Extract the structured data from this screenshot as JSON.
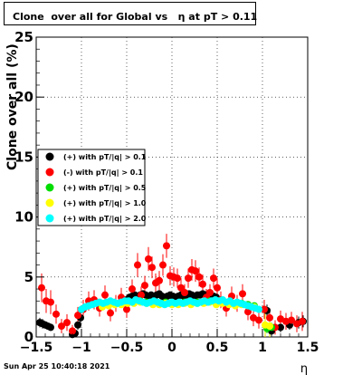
{
  "title": "Clone  over all for Global vs   η at pT > 0.11",
  "footer": "Sun Apr 25 10:40:18 2021",
  "chart_data": {
    "type": "scatter",
    "title": "Clone  over all for Global vs   η at pT > 0.11",
    "xlabel": "η",
    "ylabel": "Clone  over all (%)",
    "xlim": [
      -1.5,
      1.5
    ],
    "ylim": [
      0,
      25
    ],
    "xticks": [
      -1.5,
      -1,
      -0.5,
      0,
      0.5,
      1,
      1.5
    ],
    "xtick_labels": [
      "−1.5",
      "−1",
      "−0.5",
      "0",
      "0.5",
      "1",
      "1.5"
    ],
    "yticks": [
      0,
      5,
      10,
      15,
      20,
      25
    ],
    "ytick_labels": [
      "0",
      "5",
      "10",
      "15",
      "20",
      "25"
    ],
    "grid": true,
    "legend_position": "left-middle",
    "series": [
      {
        "name": "(+) with pT/|q| > 0.1",
        "color": "#000000",
        "x": [
          -1.46,
          -1.43,
          -1.4,
          -1.37,
          -1.34,
          -1.1,
          -1.07,
          -1.04,
          -1.01,
          -0.5,
          -0.47,
          -0.44,
          -0.41,
          -0.38,
          -0.35,
          -0.32,
          -0.29,
          -0.26,
          -0.23,
          -0.2,
          -0.17,
          -0.14,
          -0.11,
          -0.08,
          -0.05,
          -0.02,
          0.01,
          0.04,
          0.07,
          0.1,
          0.13,
          0.16,
          0.19,
          0.22,
          0.25,
          0.28,
          0.31,
          0.34,
          0.37,
          0.4,
          0.43,
          0.46,
          0.49,
          1.05,
          1.1,
          1.2,
          1.3,
          1.4,
          1.45
        ],
        "y": [
          1.2,
          1.1,
          1.0,
          0.9,
          0.8,
          0.2,
          0.3,
          1.0,
          1.6,
          3.1,
          3.3,
          3.4,
          3.5,
          3.4,
          3.5,
          3.6,
          3.5,
          3.4,
          3.5,
          3.4,
          3.5,
          3.6,
          3.4,
          3.3,
          3.4,
          3.5,
          3.4,
          3.3,
          3.4,
          3.5,
          3.4,
          3.5,
          3.6,
          3.5,
          3.4,
          3.5,
          3.5,
          3.6,
          3.5,
          3.4,
          3.5,
          3.4,
          3.3,
          2.2,
          0.5,
          0.8,
          1.0,
          1.2,
          1.3
        ],
        "yerr": [
          0.4,
          0.4,
          0.3,
          0.3,
          0.3,
          0.2,
          0.2,
          0.4,
          0.5,
          0.3,
          0.3,
          0.3,
          0.2,
          0.2,
          0.2,
          0.2,
          0.2,
          0.2,
          0.2,
          0.2,
          0.2,
          0.2,
          0.2,
          0.2,
          0.2,
          0.2,
          0.2,
          0.2,
          0.2,
          0.2,
          0.2,
          0.2,
          0.2,
          0.2,
          0.2,
          0.2,
          0.2,
          0.2,
          0.2,
          0.2,
          0.2,
          0.2,
          0.3,
          0.5,
          0.4,
          0.4,
          0.4,
          0.5,
          0.5
        ]
      },
      {
        "name": "(-) with pT/|q| > 0.1",
        "color": "#ff0000",
        "x": [
          -1.44,
          -1.39,
          -1.34,
          -1.28,
          -1.22,
          -1.16,
          -1.1,
          -1.04,
          -0.98,
          -0.92,
          -0.86,
          -0.8,
          -0.74,
          -0.68,
          -0.62,
          -0.56,
          -0.5,
          -0.44,
          -0.38,
          -0.34,
          -0.3,
          -0.26,
          -0.22,
          -0.18,
          -0.14,
          -0.1,
          -0.06,
          -0.02,
          0.02,
          0.06,
          0.1,
          0.14,
          0.18,
          0.22,
          0.26,
          0.3,
          0.34,
          0.38,
          0.42,
          0.46,
          0.5,
          0.54,
          0.6,
          0.66,
          0.72,
          0.78,
          0.84,
          0.9,
          0.96,
          1.02,
          1.08,
          1.14,
          1.2,
          1.26,
          1.32,
          1.38,
          1.44
        ],
        "y": [
          4.1,
          3.0,
          2.9,
          1.9,
          0.9,
          1.2,
          0.5,
          1.8,
          2.3,
          3.0,
          3.1,
          2.4,
          3.5,
          2.0,
          2.8,
          3.3,
          2.3,
          4.0,
          6.0,
          3.5,
          4.3,
          6.5,
          5.8,
          4.5,
          4.7,
          6.0,
          7.6,
          5.1,
          5.0,
          4.9,
          4.1,
          3.7,
          4.9,
          5.6,
          5.5,
          5.0,
          4.4,
          3.3,
          3.7,
          4.9,
          4.1,
          3.1,
          2.4,
          3.4,
          2.8,
          3.6,
          2.1,
          1.6,
          1.4,
          2.3,
          1.6,
          0.8,
          1.5,
          1.3,
          1.4,
          1.1,
          1.3
        ],
        "yerr": [
          1.2,
          1.0,
          1.0,
          0.8,
          0.6,
          0.7,
          0.5,
          0.7,
          0.8,
          0.8,
          0.8,
          0.7,
          0.8,
          0.7,
          0.7,
          0.8,
          0.7,
          0.8,
          1.0,
          0.7,
          0.8,
          1.0,
          0.9,
          0.8,
          0.8,
          0.9,
          1.0,
          0.8,
          0.8,
          0.8,
          0.8,
          0.7,
          0.8,
          0.9,
          0.9,
          0.8,
          0.8,
          0.7,
          0.7,
          0.8,
          0.8,
          0.7,
          0.7,
          0.8,
          0.7,
          0.8,
          0.7,
          0.7,
          0.7,
          0.8,
          0.8,
          0.6,
          0.7,
          0.7,
          0.7,
          0.7,
          0.8
        ]
      },
      {
        "name": "(+) with pT/|q| > 0.5",
        "color": "#00dd00",
        "x": [
          -0.77,
          -0.7,
          -0.63,
          -0.56,
          -0.49,
          -0.42,
          -0.35,
          -0.28,
          -0.21,
          -0.14,
          -0.07,
          0.0,
          0.07,
          0.14,
          0.21,
          0.28,
          0.35,
          0.42,
          0.49,
          0.56,
          0.63,
          0.7,
          0.77,
          0.84,
          0.91,
          1.05,
          1.1
        ],
        "y": [
          2.6,
          2.7,
          2.8,
          2.8,
          2.9,
          2.9,
          3.0,
          2.9,
          2.8,
          2.8,
          2.9,
          2.8,
          2.8,
          2.9,
          2.8,
          2.9,
          2.9,
          3.0,
          2.8,
          2.9,
          2.8,
          2.7,
          2.8,
          2.7,
          2.6,
          0.7,
          0.8
        ],
        "yerr": [
          0.2,
          0.2,
          0.2,
          0.2,
          0.2,
          0.2,
          0.2,
          0.2,
          0.2,
          0.2,
          0.2,
          0.2,
          0.2,
          0.2,
          0.2,
          0.2,
          0.2,
          0.2,
          0.2,
          0.2,
          0.2,
          0.2,
          0.2,
          0.2,
          0.2,
          0.4,
          0.4
        ]
      },
      {
        "name": "(+) with pT/|q| > 1.0",
        "color": "#ffff00",
        "x": [
          -0.77,
          -0.7,
          -0.63,
          -0.56,
          -0.49,
          -0.42,
          -0.35,
          -0.28,
          -0.21,
          -0.14,
          -0.07,
          0.0,
          0.07,
          0.14,
          0.21,
          0.28,
          0.35,
          0.42,
          0.49,
          0.56,
          0.63,
          0.7,
          0.77,
          0.84,
          0.91,
          1.03,
          1.08
        ],
        "y": [
          2.5,
          2.6,
          2.7,
          2.7,
          2.8,
          2.8,
          2.9,
          2.8,
          2.7,
          2.7,
          2.8,
          2.7,
          2.7,
          2.8,
          2.7,
          2.8,
          2.8,
          2.9,
          2.7,
          2.8,
          2.7,
          2.6,
          2.7,
          2.6,
          2.5,
          1.0,
          0.9
        ],
        "yerr": [
          0.2,
          0.2,
          0.2,
          0.2,
          0.2,
          0.2,
          0.2,
          0.2,
          0.2,
          0.2,
          0.2,
          0.2,
          0.2,
          0.2,
          0.2,
          0.2,
          0.2,
          0.2,
          0.2,
          0.2,
          0.2,
          0.2,
          0.2,
          0.2,
          0.2,
          1.3,
          1.0
        ]
      },
      {
        "name": "(+) with pT/|q| > 2.0",
        "color": "#00ffff",
        "x": [
          -1.0,
          -0.96,
          -0.92,
          -0.88,
          -0.84,
          -0.8,
          -0.76,
          -0.72,
          -0.68,
          -0.64,
          -0.6,
          -0.56,
          -0.52,
          -0.48,
          -0.44,
          -0.4,
          -0.36,
          -0.32,
          -0.28,
          -0.24,
          -0.2,
          -0.16,
          -0.12,
          -0.08,
          -0.04,
          0.0,
          0.04,
          0.08,
          0.12,
          0.16,
          0.2,
          0.24,
          0.28,
          0.32,
          0.36,
          0.4,
          0.44,
          0.48,
          0.52,
          0.56,
          0.6,
          0.64,
          0.68,
          0.72,
          0.76,
          0.8,
          0.84,
          0.88,
          0.92,
          0.96
        ],
        "y": [
          2.3,
          2.5,
          2.6,
          2.7,
          2.8,
          2.9,
          2.8,
          2.9,
          3.0,
          2.9,
          2.8,
          2.9,
          3.0,
          3.0,
          2.9,
          3.1,
          3.0,
          2.9,
          2.8,
          2.9,
          3.0,
          2.9,
          2.8,
          2.7,
          2.8,
          2.9,
          2.8,
          2.9,
          2.8,
          2.9,
          3.0,
          2.9,
          2.8,
          2.9,
          3.0,
          2.9,
          3.0,
          3.1,
          3.0,
          3.1,
          2.9,
          3.0,
          2.8,
          2.9,
          2.8,
          2.7,
          2.6,
          2.5,
          2.4,
          2.3
        ],
        "yerr": [
          0.3,
          0.2,
          0.2,
          0.2,
          0.2,
          0.2,
          0.2,
          0.2,
          0.2,
          0.2,
          0.2,
          0.2,
          0.2,
          0.2,
          0.2,
          0.2,
          0.2,
          0.2,
          0.2,
          0.2,
          0.2,
          0.2,
          0.2,
          0.2,
          0.2,
          0.2,
          0.2,
          0.2,
          0.2,
          0.2,
          0.2,
          0.2,
          0.2,
          0.2,
          0.2,
          0.2,
          0.2,
          0.2,
          0.2,
          0.2,
          0.2,
          0.2,
          0.2,
          0.2,
          0.2,
          0.2,
          0.2,
          0.2,
          0.2,
          0.3
        ]
      }
    ]
  }
}
